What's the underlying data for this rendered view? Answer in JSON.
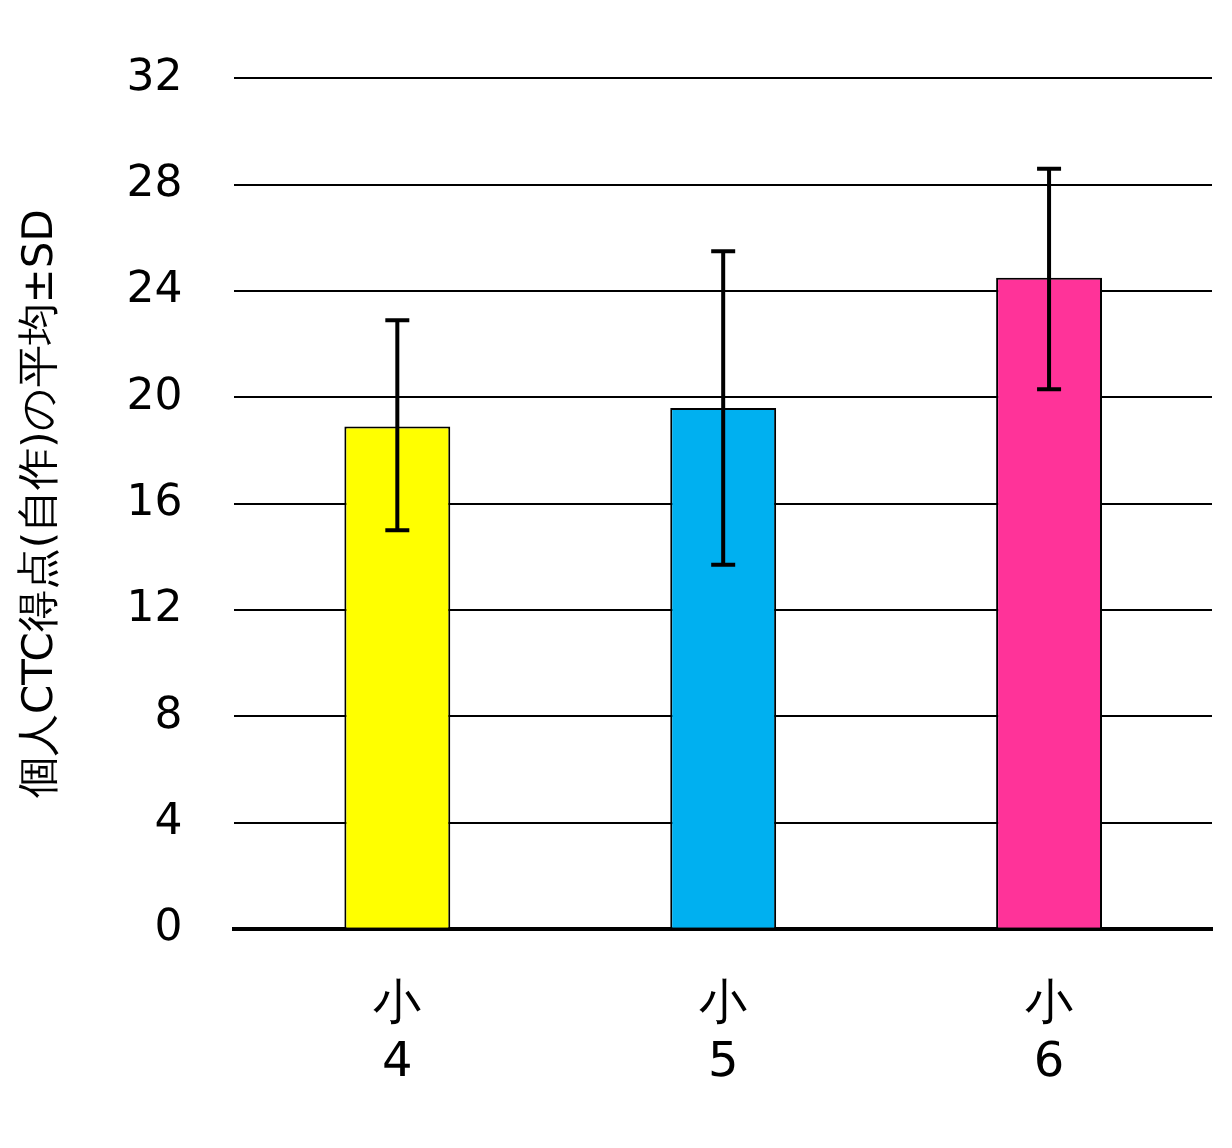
{
  "chart_data": {
    "type": "bar",
    "ylabel": "個人CTC得点(自作)の平均±SD",
    "categories": [
      "小4",
      "小5",
      "小6"
    ],
    "values": [
      18.9,
      19.6,
      24.5
    ],
    "colors": [
      "#ffff00",
      "#00b0f0",
      "#ff3399"
    ],
    "errors": [
      [
        15.0,
        22.9
      ],
      [
        13.7,
        25.5
      ],
      [
        20.3,
        28.6
      ]
    ],
    "ylim": [
      0,
      32
    ],
    "yticks": [
      0,
      4,
      8,
      12,
      16,
      20,
      24,
      28,
      32
    ],
    "grid": "y",
    "legend": false
  }
}
